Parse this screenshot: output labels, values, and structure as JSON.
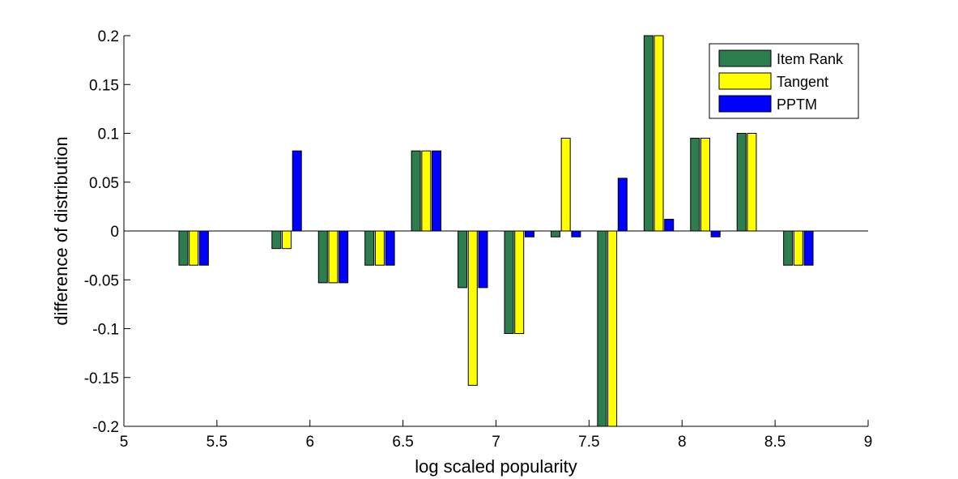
{
  "chart_data": {
    "type": "bar",
    "title": "",
    "xlabel": "log scaled popularity",
    "ylabel": "difference of distribution",
    "xlim": [
      5,
      9
    ],
    "ylim": [
      -0.2,
      0.2
    ],
    "xticks": [
      "5",
      "5.5",
      "6",
      "6.5",
      "7",
      "7.5",
      "8",
      "8.5",
      "9"
    ],
    "yticks": [
      "-0.2",
      "-0.15",
      "-0.1",
      "-0.05",
      "0",
      "0.05",
      "0.1",
      "0.15",
      "0.2"
    ],
    "grid": false,
    "legend_position": "top-right",
    "x": [
      5.375,
      5.875,
      6.125,
      6.375,
      6.625,
      6.875,
      7.125,
      7.375,
      7.625,
      7.875,
      8.125,
      8.375,
      8.625
    ],
    "series": [
      {
        "name": "Item Rank",
        "color": "#2e7d4f",
        "values": [
          -0.035,
          -0.018,
          -0.053,
          -0.035,
          0.082,
          -0.058,
          -0.105,
          -0.006,
          -0.2,
          0.2,
          0.095,
          0.1,
          -0.035
        ]
      },
      {
        "name": "Tangent",
        "color": "#ffff00",
        "values": [
          -0.035,
          -0.018,
          -0.053,
          -0.035,
          0.082,
          -0.158,
          -0.105,
          0.095,
          -0.2,
          0.2,
          0.095,
          0.1,
          -0.035
        ]
      },
      {
        "name": "PPTM",
        "color": "#0000ff",
        "values": [
          -0.035,
          0.082,
          -0.053,
          -0.035,
          0.082,
          -0.058,
          -0.006,
          -0.006,
          0.054,
          0.012,
          -0.006,
          0,
          -0.035
        ]
      }
    ]
  }
}
